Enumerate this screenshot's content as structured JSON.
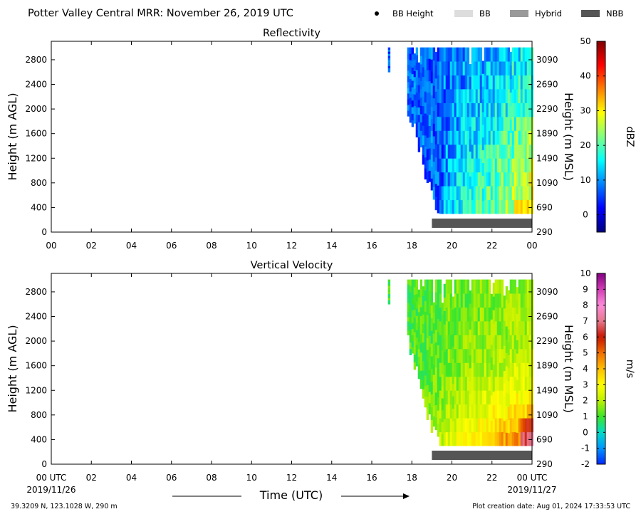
{
  "header": {
    "title": "Potter Valley Central MRR:  November 26, 2019 UTC",
    "legend": [
      {
        "label": "BB Height",
        "kind": "dot",
        "color": "#000000"
      },
      {
        "label": "BB",
        "kind": "rect",
        "color": "#dddddd"
      },
      {
        "label": "Hybrid",
        "kind": "rect",
        "color": "#999999"
      },
      {
        "label": "NBB",
        "kind": "rect",
        "color": "#555555"
      }
    ]
  },
  "footer": {
    "location": "39.3209 N, 123.1028 W, 290 m",
    "creation": "Plot creation date: Aug 01, 2024 17:33:53 UTC",
    "start_date": "2019/11/26",
    "end_date": "2019/11/27",
    "time_label": "Time (UTC)"
  },
  "chart_data": [
    {
      "type": "heatmap",
      "title": "Reflectivity",
      "xlabel": "",
      "ylabel": "Height (m AGL)",
      "ylabel_right": "Height (m MSL)",
      "x_ticks": [
        "00",
        "02",
        "04",
        "06",
        "08",
        "10",
        "12",
        "14",
        "16",
        "18",
        "20",
        "22",
        "00"
      ],
      "xlim_hours": [
        0,
        24
      ],
      "ylim": [
        0,
        3100
      ],
      "y_ticks": [
        0,
        400,
        800,
        1200,
        1600,
        2000,
        2400,
        2800
      ],
      "y_ticks_right": [
        290,
        690,
        1090,
        1490,
        1890,
        2290,
        2690,
        3090
      ],
      "colorbar": {
        "label": "dBZ",
        "range": [
          -5,
          50
        ],
        "ticks": [
          0,
          10,
          20,
          30,
          40,
          50
        ],
        "colormap": "jet"
      },
      "data_extent": {
        "start_hour": 16.7,
        "end_hour": 24,
        "min_height": 300,
        "max_height": 3000
      },
      "value_trend": "weak echoes (0-10 dBZ) near precipitation onset around 18 UTC, increasing to 30-40 dBZ after 21 UTC near the surface",
      "nbb_bar": {
        "start_hour": 19.0,
        "end_hour": 24.0
      }
    },
    {
      "type": "heatmap",
      "title": "Vertical Velocity",
      "xlabel": "",
      "ylabel": "Height (m AGL)",
      "ylabel_right": "Height (m MSL)",
      "x_ticks": [
        "00 UTC",
        "02",
        "04",
        "06",
        "08",
        "10",
        "12",
        "14",
        "16",
        "18",
        "20",
        "22",
        "00 UTC"
      ],
      "xlim_hours": [
        0,
        24
      ],
      "ylim": [
        0,
        3100
      ],
      "y_ticks": [
        0,
        400,
        800,
        1200,
        1600,
        2000,
        2400,
        2800
      ],
      "y_ticks_right": [
        290,
        690,
        1090,
        1490,
        1890,
        2290,
        2690,
        3090
      ],
      "colorbar": {
        "label": "m/s",
        "range": [
          -2,
          10
        ],
        "ticks": [
          -2,
          -1,
          0,
          1,
          2,
          3,
          4,
          5,
          6,
          7,
          8,
          9,
          10
        ],
        "colormap": "velocity"
      },
      "data_extent": {
        "start_hour": 16.7,
        "end_hour": 24,
        "min_height": 300,
        "max_height": 3000
      },
      "value_trend": "mostly 1-2 m/s aloft, 3-6 m/s in the lowest levels late in the period",
      "nbb_bar": {
        "start_hour": 19.0,
        "end_hour": 24.0
      }
    }
  ]
}
